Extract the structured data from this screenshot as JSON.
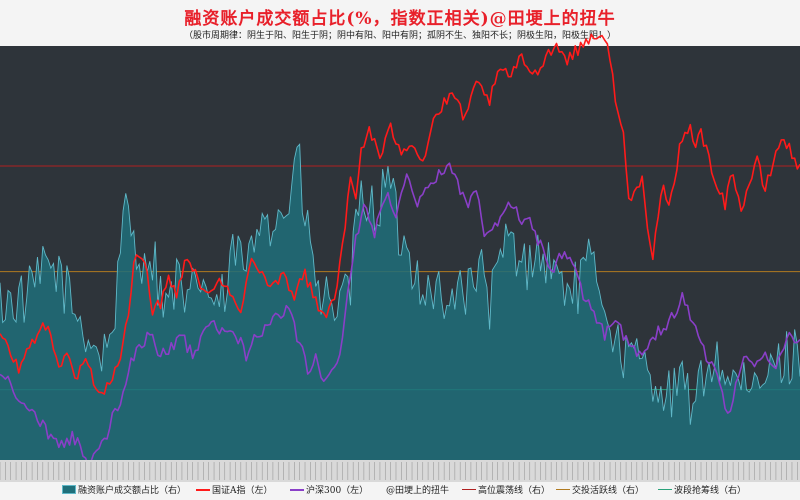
{
  "chart_data": {
    "type": "line",
    "title": "融资账户成交额占比(%，指数正相关)@田埂上的扭牛",
    "subtitle": "（股市周期律：阴生于阳、阳生于阴；阴中有阳、阳中有阴；孤阴不生、独阳不长；阴极生阳，阳极生阴！）",
    "background": "#2e343a",
    "grid": false,
    "legend_position": "bottom",
    "x_points": 300,
    "ylim_left": [
      0,
      100
    ],
    "ylim_right": [
      0,
      100
    ],
    "series": [
      {
        "name": "融资账户成交额占比（右）",
        "axis": "right",
        "kind": "area",
        "color": "#5fb8c8",
        "fill": "#1f6f7a",
        "keypoints": [
          [
            0,
            38
          ],
          [
            10,
            39
          ],
          [
            18,
            47
          ],
          [
            22,
            45
          ],
          [
            28,
            36
          ],
          [
            33,
            30
          ],
          [
            38,
            25
          ],
          [
            42,
            32
          ],
          [
            45,
            47
          ],
          [
            47,
            62
          ],
          [
            50,
            55
          ],
          [
            54,
            45
          ],
          [
            56,
            52
          ],
          [
            58,
            47
          ],
          [
            62,
            36
          ],
          [
            66,
            44
          ],
          [
            70,
            35
          ],
          [
            74,
            45
          ],
          [
            78,
            40
          ],
          [
            82,
            37
          ],
          [
            85,
            41
          ],
          [
            88,
            52
          ],
          [
            92,
            45
          ],
          [
            96,
            55
          ],
          [
            99,
            65
          ],
          [
            101,
            57
          ],
          [
            105,
            59
          ],
          [
            108,
            62
          ],
          [
            111,
            75
          ],
          [
            114,
            58
          ],
          [
            117,
            48
          ],
          [
            120,
            37
          ],
          [
            124,
            40
          ],
          [
            127,
            35
          ],
          [
            131,
            42
          ],
          [
            133,
            55
          ],
          [
            136,
            65
          ],
          [
            140,
            59
          ],
          [
            145,
            68
          ],
          [
            150,
            52
          ],
          [
            155,
            47
          ],
          [
            160,
            40
          ],
          [
            163,
            43
          ],
          [
            167,
            33
          ],
          [
            171,
            45
          ],
          [
            175,
            40
          ],
          [
            179,
            47
          ],
          [
            183,
            38
          ],
          [
            186,
            44
          ],
          [
            190,
            55
          ],
          [
            195,
            45
          ],
          [
            200,
            52
          ],
          [
            203,
            48
          ],
          [
            206,
            47
          ],
          [
            210,
            43
          ],
          [
            215,
            41
          ],
          [
            220,
            47
          ],
          [
            225,
            42
          ],
          [
            230,
            28
          ],
          [
            235,
            25
          ],
          [
            240,
            23
          ],
          [
            245,
            20
          ],
          [
            250,
            15
          ],
          [
            255,
            18
          ],
          [
            260,
            13
          ],
          [
            265,
            25
          ],
          [
            270,
            22
          ],
          [
            275,
            19
          ],
          [
            280,
            15
          ],
          [
            285,
            19
          ],
          [
            290,
            23
          ],
          [
            295,
            25
          ],
          [
            299,
            27
          ]
        ]
      },
      {
        "name": "国证A指（左）",
        "axis": "left",
        "kind": "line",
        "color": "#ff1a1a",
        "keypoints": [
          [
            0,
            30
          ],
          [
            3,
            27
          ],
          [
            7,
            22
          ],
          [
            10,
            26
          ],
          [
            14,
            31
          ],
          [
            18,
            32
          ],
          [
            22,
            23
          ],
          [
            25,
            25
          ],
          [
            28,
            20
          ],
          [
            32,
            24
          ],
          [
            36,
            18
          ],
          [
            39,
            16
          ],
          [
            42,
            20
          ],
          [
            45,
            25
          ],
          [
            48,
            35
          ],
          [
            50,
            47
          ],
          [
            53,
            50
          ],
          [
            55,
            47
          ],
          [
            57,
            35
          ],
          [
            60,
            38
          ],
          [
            63,
            45
          ],
          [
            66,
            40
          ],
          [
            70,
            50
          ],
          [
            74,
            44
          ],
          [
            78,
            39
          ],
          [
            82,
            45
          ],
          [
            86,
            40
          ],
          [
            90,
            35
          ],
          [
            94,
            50
          ],
          [
            98,
            45
          ],
          [
            102,
            42
          ],
          [
            106,
            45
          ],
          [
            110,
            40
          ],
          [
            114,
            45
          ],
          [
            118,
            38
          ],
          [
            122,
            35
          ],
          [
            126,
            42
          ],
          [
            128,
            51
          ],
          [
            131,
            68
          ],
          [
            133,
            63
          ],
          [
            135,
            75
          ],
          [
            138,
            80
          ],
          [
            142,
            73
          ],
          [
            146,
            80
          ],
          [
            150,
            75
          ],
          [
            154,
            77
          ],
          [
            158,
            72
          ],
          [
            162,
            82
          ],
          [
            166,
            86
          ],
          [
            170,
            88
          ],
          [
            174,
            82
          ],
          [
            178,
            91
          ],
          [
            183,
            87
          ],
          [
            187,
            94
          ],
          [
            191,
            93
          ],
          [
            195,
            97
          ],
          [
            200,
            93
          ],
          [
            204,
            98
          ],
          [
            208,
            100
          ],
          [
            212,
            97
          ],
          [
            216,
            99
          ],
          [
            220,
            102
          ],
          [
            224,
            103
          ],
          [
            228,
            98
          ],
          [
            230,
            87
          ],
          [
            233,
            78
          ],
          [
            235,
            63
          ],
          [
            238,
            65
          ],
          [
            240,
            70
          ],
          [
            242,
            57
          ],
          [
            244,
            48
          ],
          [
            246,
            60
          ],
          [
            248,
            65
          ],
          [
            250,
            60
          ],
          [
            252,
            67
          ],
          [
            254,
            75
          ],
          [
            256,
            78
          ],
          [
            258,
            82
          ],
          [
            260,
            75
          ],
          [
            262,
            80
          ],
          [
            265,
            72
          ],
          [
            268,
            67
          ],
          [
            271,
            62
          ],
          [
            274,
            70
          ],
          [
            277,
            60
          ],
          [
            280,
            67
          ],
          [
            283,
            72
          ],
          [
            286,
            65
          ],
          [
            289,
            72
          ],
          [
            292,
            78
          ],
          [
            295,
            75
          ],
          [
            297,
            73
          ],
          [
            299,
            70
          ]
        ]
      },
      {
        "name": "沪深300（左）",
        "axis": "left",
        "kind": "line",
        "color": "#8a3fc8",
        "keypoints": [
          [
            0,
            21
          ],
          [
            4,
            18
          ],
          [
            8,
            13
          ],
          [
            12,
            12
          ],
          [
            16,
            8
          ],
          [
            20,
            5
          ],
          [
            24,
            3
          ],
          [
            27,
            6
          ],
          [
            30,
            3
          ],
          [
            33,
            -2
          ],
          [
            36,
            2
          ],
          [
            39,
            4
          ],
          [
            42,
            10
          ],
          [
            45,
            14
          ],
          [
            48,
            22
          ],
          [
            52,
            28
          ],
          [
            56,
            30
          ],
          [
            60,
            25
          ],
          [
            64,
            27
          ],
          [
            68,
            30
          ],
          [
            72,
            25
          ],
          [
            76,
            30
          ],
          [
            80,
            33
          ],
          [
            84,
            30
          ],
          [
            88,
            31
          ],
          [
            92,
            25
          ],
          [
            96,
            30
          ],
          [
            100,
            32
          ],
          [
            104,
            35
          ],
          [
            108,
            36
          ],
          [
            112,
            28
          ],
          [
            115,
            22
          ],
          [
            118,
            25
          ],
          [
            121,
            18
          ],
          [
            124,
            21
          ],
          [
            128,
            29
          ],
          [
            130,
            40
          ],
          [
            133,
            53
          ],
          [
            136,
            62
          ],
          [
            140,
            55
          ],
          [
            144,
            64
          ],
          [
            148,
            60
          ],
          [
            152,
            68
          ],
          [
            156,
            62
          ],
          [
            160,
            65
          ],
          [
            164,
            69
          ],
          [
            168,
            72
          ],
          [
            172,
            65
          ],
          [
            175,
            62
          ],
          [
            178,
            66
          ],
          [
            181,
            55
          ],
          [
            184,
            57
          ],
          [
            186,
            57
          ],
          [
            189,
            61
          ],
          [
            192,
            62
          ],
          [
            195,
            58
          ],
          [
            198,
            57
          ],
          [
            202,
            52
          ],
          [
            206,
            45
          ],
          [
            210,
            50
          ],
          [
            214,
            48
          ],
          [
            218,
            40
          ],
          [
            222,
            35
          ],
          [
            226,
            30
          ],
          [
            230,
            35
          ],
          [
            233,
            30
          ],
          [
            236,
            28
          ],
          [
            240,
            25
          ],
          [
            244,
            30
          ],
          [
            248,
            32
          ],
          [
            252,
            35
          ],
          [
            255,
            40
          ],
          [
            258,
            35
          ],
          [
            261,
            30
          ],
          [
            264,
            25
          ],
          [
            268,
            20
          ],
          [
            272,
            10
          ],
          [
            275,
            18
          ],
          [
            278,
            25
          ],
          [
            282,
            22
          ],
          [
            286,
            25
          ],
          [
            290,
            22
          ],
          [
            294,
            30
          ],
          [
            297,
            28
          ],
          [
            299,
            30
          ]
        ]
      },
      {
        "name": "@田埂上的扭牛",
        "kind": "none",
        "color": "#2e343a"
      },
      {
        "name": "高位震荡线（右）",
        "axis": "right",
        "kind": "hline",
        "color": "#b02020",
        "value": 71
      },
      {
        "name": "交投活跃线（右）",
        "axis": "right",
        "kind": "hline",
        "color": "#b07a20",
        "value": 45.5
      },
      {
        "name": "波段抢筹线（右）",
        "axis": "right",
        "kind": "hline",
        "color": "#2aa27a",
        "value": 17
      }
    ]
  }
}
